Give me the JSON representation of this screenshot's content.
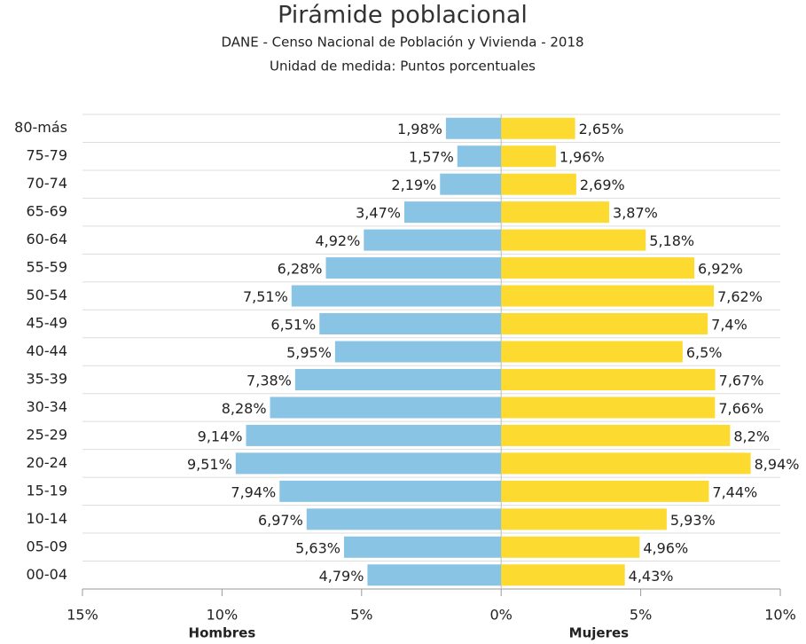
{
  "chart_data": {
    "type": "pyramid",
    "title": "Pirámide poblacional",
    "subtitle": [
      "DANE - Censo Nacional de Población y Vivienda - 2018",
      "Unidad de medida: Puntos porcentuales"
    ],
    "categories": [
      "80-más",
      "75-79",
      "70-74",
      "65-69",
      "60-64",
      "55-59",
      "50-54",
      "45-49",
      "40-44",
      "35-39",
      "30-34",
      "25-29",
      "20-24",
      "15-19",
      "10-14",
      "05-09",
      "00-04"
    ],
    "series": [
      {
        "name": "Hombres",
        "color": "#89c4e4",
        "side": "left",
        "values": [
          1.98,
          1.57,
          2.19,
          3.47,
          4.92,
          6.28,
          7.51,
          6.51,
          5.95,
          7.38,
          8.28,
          9.14,
          9.51,
          7.94,
          6.97,
          5.63,
          4.79
        ],
        "value_labels": [
          "1,98%",
          "1,57%",
          "2,19%",
          "3,47%",
          "4,92%",
          "6,28%",
          "7,51%",
          "6,51%",
          "5,95%",
          "7,38%",
          "8,28%",
          "9,14%",
          "9,51%",
          "7,94%",
          "6,97%",
          "5,63%",
          "4,79%"
        ]
      },
      {
        "name": "Mujeres",
        "color": "#fcda30",
        "side": "right",
        "values": [
          2.65,
          1.96,
          2.69,
          3.87,
          5.18,
          6.92,
          7.62,
          7.4,
          6.5,
          7.67,
          7.66,
          8.2,
          8.94,
          7.44,
          5.93,
          4.96,
          4.43
        ],
        "value_labels": [
          "2,65%",
          "1,96%",
          "2,69%",
          "3,87%",
          "5,18%",
          "6,92%",
          "7,62%",
          "7,4%",
          "6,5%",
          "7,67%",
          "7,66%",
          "8,2%",
          "8,94%",
          "7,44%",
          "5,93%",
          "4,96%",
          "4,43%"
        ]
      }
    ],
    "xlim": [
      -15,
      10
    ],
    "xticks": [
      {
        "value": -15,
        "label": "15%"
      },
      {
        "value": -10,
        "label": "10%"
      },
      {
        "value": -5,
        "label": "5%"
      },
      {
        "value": 0,
        "label": "0%"
      },
      {
        "value": 5,
        "label": "5%"
      },
      {
        "value": 10,
        "label": "10%"
      }
    ],
    "grid": true
  }
}
